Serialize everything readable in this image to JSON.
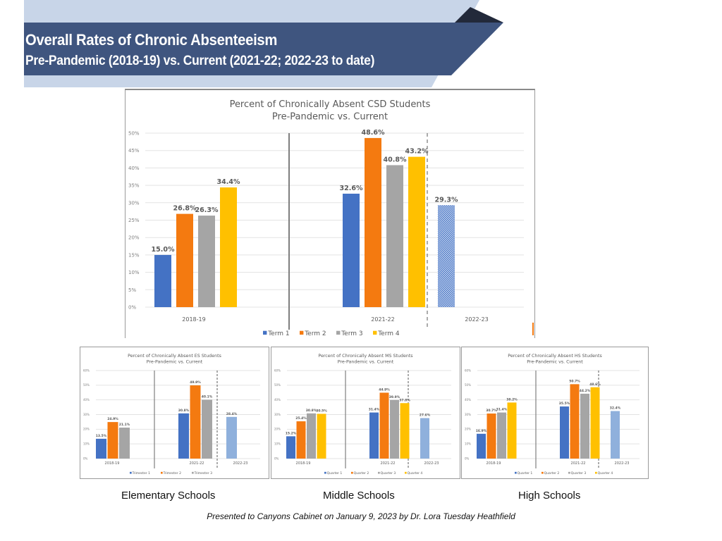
{
  "slide": {
    "title": "Overall Rates of Chronic Absenteeism",
    "subtitle": "Pre-Pandemic (2018-19) vs. Current (2021-22; 2022-23 to date)",
    "captions": [
      "Elementary Schools",
      "Middle Schools",
      "High Schools"
    ],
    "footer": "Presented to Canyons Cabinet on January 9, 2023 by Dr. Lora Tuesday Heathfield",
    "colors": {
      "banner_dark": "#3f557f",
      "banner_light": "#c8d5e8",
      "banner_accent": "#22293a",
      "series": [
        "#4472c4",
        "#f47a10",
        "#a5a5a5",
        "#ffc000"
      ],
      "current_year": "#8fb0dc"
    }
  },
  "chart_data": [
    {
      "id": "csd",
      "type": "bar",
      "title": "Percent of Chronically Absent CSD Students",
      "subtitle": "Pre-Pandemic vs. Current",
      "categories": [
        "2018-19",
        "2021-22",
        "2022-23"
      ],
      "series": [
        {
          "name": "Term 1",
          "values": [
            15.0,
            32.6,
            29.3
          ]
        },
        {
          "name": "Term 2",
          "values": [
            26.8,
            48.6,
            null
          ]
        },
        {
          "name": "Term 3",
          "values": [
            26.3,
            40.8,
            null
          ]
        },
        {
          "name": "Term 4",
          "values": [
            34.4,
            43.2,
            null
          ]
        }
      ],
      "data_labels": [
        [
          "15.0%",
          "26.8%",
          "26.3%",
          "34.4%"
        ],
        [
          "32.6%",
          "48.6%",
          "40.8%",
          "43.2%"
        ],
        [
          "29.3%"
        ]
      ],
      "ylim": [
        0,
        50
      ],
      "yticks": [
        "0%",
        "5%",
        "10%",
        "15%",
        "20%",
        "25%",
        "30%",
        "35%",
        "40%",
        "45%",
        "50%"
      ],
      "grid": true,
      "legend": "bottom",
      "xlabel": "",
      "ylabel": ""
    },
    {
      "id": "es",
      "type": "bar",
      "title": "Percent of Chronically Absent ES Students",
      "subtitle": "Pre-Pandemic vs. Current",
      "categories": [
        "2018-19",
        "2021-22",
        "2022-23"
      ],
      "series": [
        {
          "name": "Trimester 1",
          "values": [
            13.5,
            30.8,
            28.4
          ]
        },
        {
          "name": "Trimester 2",
          "values": [
            24.9,
            49.9,
            null
          ]
        },
        {
          "name": "Trimester 3",
          "values": [
            21.1,
            40.1,
            null
          ]
        }
      ],
      "data_labels": [
        [
          "13.5%",
          "24.9%",
          "21.1%"
        ],
        [
          "30.8%",
          "49.9%",
          "40.1%"
        ],
        [
          "28.4%"
        ]
      ],
      "ylim": [
        0,
        60
      ],
      "yticks": [
        "0%",
        "10%",
        "20%",
        "30%",
        "40%",
        "50%",
        "60%"
      ],
      "grid": true,
      "legend": "bottom",
      "xlabel": "",
      "ylabel": ""
    },
    {
      "id": "ms",
      "type": "bar",
      "title": "Percent of Chronically Absent MS Students",
      "subtitle": "Pre-Pandemic vs. Current",
      "categories": [
        "2018-19",
        "2021-22",
        "2022-23"
      ],
      "series": [
        {
          "name": "Quarter 1",
          "values": [
            15.2,
            31.4,
            27.6
          ]
        },
        {
          "name": "Quarter 2",
          "values": [
            25.4,
            44.9,
            null
          ]
        },
        {
          "name": "Quarter 3",
          "values": [
            30.8,
            39.9,
            null
          ]
        },
        {
          "name": "Quarter 4",
          "values": [
            30.5,
            37.8,
            null
          ]
        }
      ],
      "data_labels": [
        [
          "15.2%",
          "25.4%",
          "30.8%",
          "30.5%"
        ],
        [
          "31.4%",
          "44.9%",
          "39.9%",
          "37.8%"
        ],
        [
          "27.6%"
        ]
      ],
      "ylim": [
        0,
        60
      ],
      "yticks": [
        "0%",
        "10%",
        "20%",
        "30%",
        "40%",
        "50%",
        "60%"
      ],
      "grid": true,
      "legend": "bottom",
      "xlabel": "",
      "ylabel": ""
    },
    {
      "id": "hs",
      "type": "bar",
      "title": "Percent of Chronically Absent HS Students",
      "subtitle": "Pre-Pandemic vs. Current",
      "categories": [
        "2018-19",
        "2021-22",
        "2022-23"
      ],
      "series": [
        {
          "name": "Quarter 1",
          "values": [
            16.9,
            35.5,
            32.4
          ]
        },
        {
          "name": "Quarter 2",
          "values": [
            30.7,
            50.7,
            null
          ]
        },
        {
          "name": "Quarter 3",
          "values": [
            31.4,
            44.2,
            null
          ]
        },
        {
          "name": "Quarter 4",
          "values": [
            38.2,
            48.6,
            null
          ]
        }
      ],
      "data_labels": [
        [
          "16.9%",
          "30.7%",
          "31.4%",
          "38.2%"
        ],
        [
          "35.5%",
          "50.7%",
          "44.2%",
          "48.6%"
        ],
        [
          "32.4%"
        ]
      ],
      "ylim": [
        0,
        60
      ],
      "yticks": [
        "0%",
        "10%",
        "20%",
        "30%",
        "40%",
        "50%",
        "60%"
      ],
      "grid": true,
      "legend": "bottom",
      "xlabel": "",
      "ylabel": ""
    }
  ]
}
